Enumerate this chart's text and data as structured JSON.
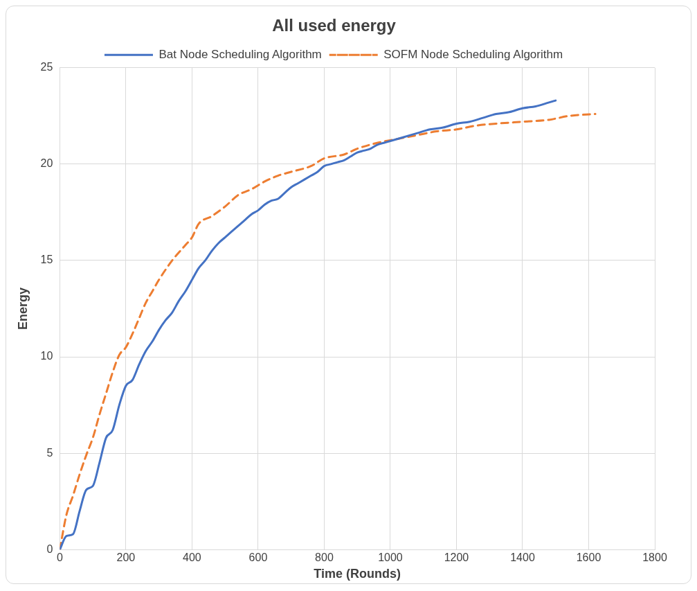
{
  "chart_data": {
    "type": "line",
    "title": "All used energy",
    "xlabel": "Time (Rounds)",
    "ylabel": "Energy",
    "xlim": [
      0,
      1800
    ],
    "xticks": [
      0,
      200,
      400,
      600,
      800,
      1000,
      1200,
      1400,
      1600,
      1800
    ],
    "ylim": [
      0,
      25
    ],
    "yticks": [
      0,
      5,
      10,
      15,
      20,
      25
    ],
    "grid": true,
    "legend": "top",
    "marker": "none",
    "series": [
      {
        "name": "Bat Node Scheduling Algorithm",
        "color": "#4472c4",
        "line_style": "solid",
        "x": [
          0,
          20,
          40,
          60,
          80,
          100,
          120,
          140,
          160,
          180,
          200,
          220,
          240,
          260,
          280,
          300,
          320,
          340,
          360,
          380,
          400,
          420,
          440,
          460,
          480,
          500,
          520,
          540,
          560,
          580,
          600,
          620,
          640,
          660,
          680,
          700,
          720,
          740,
          760,
          780,
          800,
          820,
          840,
          860,
          880,
          900,
          920,
          940,
          960,
          980,
          1000,
          1040,
          1080,
          1120,
          1160,
          1200,
          1240,
          1280,
          1320,
          1360,
          1400,
          1440,
          1480,
          1500
        ],
        "values": [
          0,
          0.7,
          0.8,
          2,
          3.1,
          3.3,
          4.5,
          5.8,
          6.2,
          7.5,
          8.5,
          8.8,
          9.6,
          10.3,
          10.8,
          11.4,
          11.9,
          12.3,
          12.9,
          13.4,
          14,
          14.6,
          15,
          15.5,
          15.9,
          16.2,
          16.5,
          16.8,
          17.1,
          17.4,
          17.6,
          17.9,
          18.1,
          18.2,
          18.5,
          18.8,
          19,
          19.2,
          19.4,
          19.6,
          19.9,
          20,
          20.1,
          20.2,
          20.4,
          20.6,
          20.7,
          20.8,
          21,
          21.1,
          21.2,
          21.4,
          21.6,
          21.8,
          21.9,
          22.1,
          22.2,
          22.4,
          22.6,
          22.7,
          22.9,
          23,
          23.2,
          23.3
        ]
      },
      {
        "name": "SOFM Node Scheduling Algorithm",
        "color": "#ed7d31",
        "line_style": "dashed",
        "x": [
          0,
          20,
          40,
          60,
          80,
          100,
          120,
          140,
          160,
          180,
          200,
          220,
          240,
          260,
          280,
          300,
          340,
          380,
          400,
          420,
          460,
          500,
          540,
          580,
          620,
          660,
          700,
          760,
          800,
          860,
          900,
          960,
          1020,
          1080,
          1140,
          1200,
          1260,
          1320,
          1400,
          1480,
          1540,
          1620
        ],
        "values": [
          0,
          1.8,
          2.8,
          3.9,
          4.9,
          5.8,
          7,
          8.1,
          9.2,
          10.1,
          10.5,
          11.2,
          12,
          12.8,
          13.4,
          14,
          15,
          15.8,
          16.2,
          16.9,
          17.3,
          17.8,
          18.4,
          18.7,
          19.1,
          19.4,
          19.6,
          19.9,
          20.3,
          20.5,
          20.8,
          21.1,
          21.3,
          21.5,
          21.7,
          21.8,
          22,
          22.1,
          22.2,
          22.3,
          22.5,
          22.6
        ]
      }
    ]
  }
}
